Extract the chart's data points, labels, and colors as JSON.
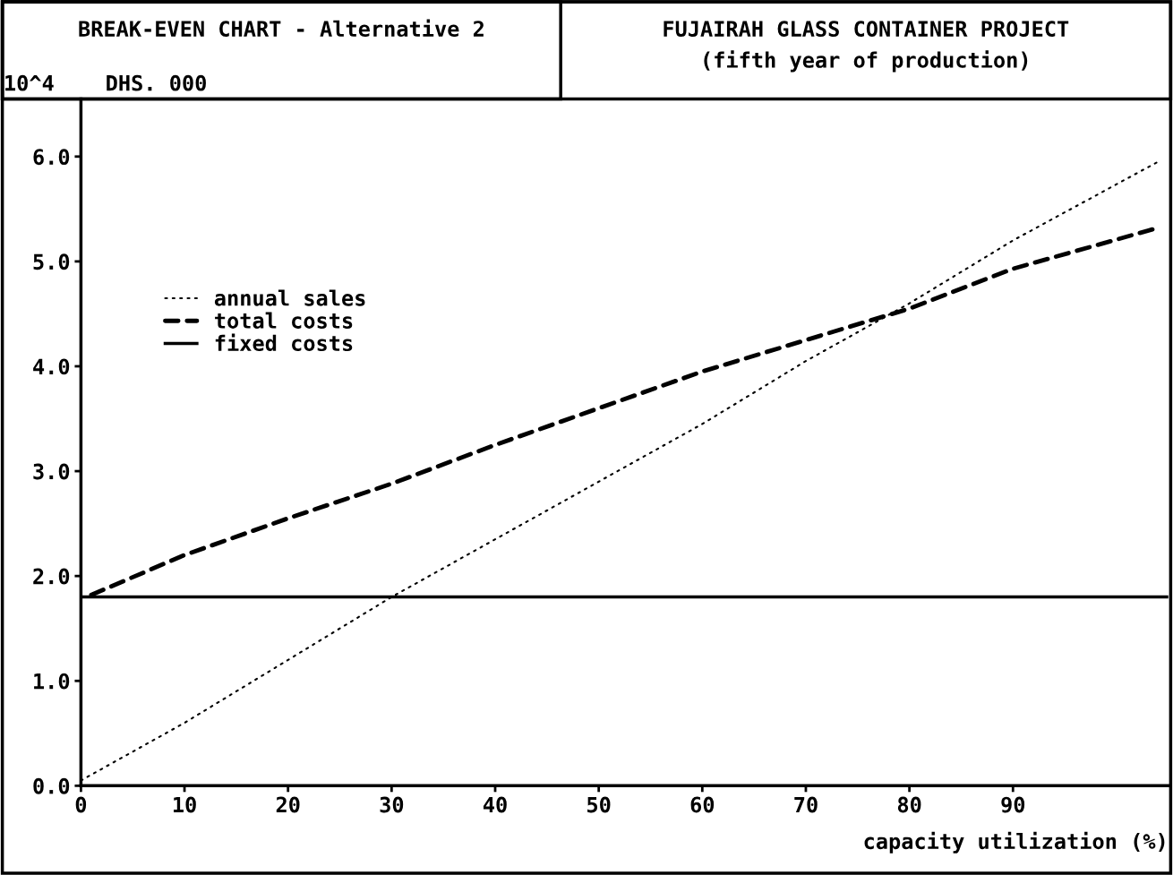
{
  "chart_data": {
    "type": "line",
    "title": "BREAK-EVEN CHART - Alternative 2",
    "subtitle": "FUJAIRAH GLASS CONTAINER PROJECT",
    "annotations": [
      "(fifth year of production)"
    ],
    "ylabel": "10^4    DHS. 000",
    "xlabel": "capacity utilization (%)",
    "series": [
      {
        "name": "annual sales",
        "color": "#000000",
        "line_style": "dotted",
        "x": [
          0,
          10,
          20,
          30,
          40,
          50,
          60,
          70,
          80,
          90,
          104
        ],
        "values": [
          0.05,
          0.6,
          1.2,
          1.8,
          2.35,
          2.9,
          3.45,
          4.05,
          4.6,
          5.2,
          5.95
        ]
      },
      {
        "name": "total costs",
        "color": "#000000",
        "line_style": "dashed",
        "x": [
          1,
          10,
          20,
          30,
          40,
          50,
          60,
          70,
          80,
          90,
          104
        ],
        "values": [
          1.82,
          2.2,
          2.55,
          2.88,
          3.25,
          3.6,
          3.95,
          4.25,
          4.55,
          4.93,
          5.32
        ]
      },
      {
        "name": "fixed costs",
        "color": "#000000",
        "line_style": "solid",
        "x": [
          0,
          105
        ],
        "values": [
          1.8,
          1.8
        ]
      }
    ],
    "xlim": [
      0,
      105
    ],
    "xticks": [
      0,
      10,
      20,
      30,
      40,
      50,
      60,
      70,
      80,
      90
    ],
    "ylim": [
      0,
      6.55
    ],
    "yticks": [
      {
        "value": 0,
        "label": "0.0"
      },
      {
        "value": 1,
        "label": "1.0"
      },
      {
        "value": 2,
        "label": "2.0"
      },
      {
        "value": 3,
        "label": "3.0"
      },
      {
        "value": 4,
        "label": "4.0"
      },
      {
        "value": 5,
        "label": "5.0"
      },
      {
        "value": 6,
        "label": "6.0"
      }
    ],
    "legend": "top left",
    "grid": false
  }
}
